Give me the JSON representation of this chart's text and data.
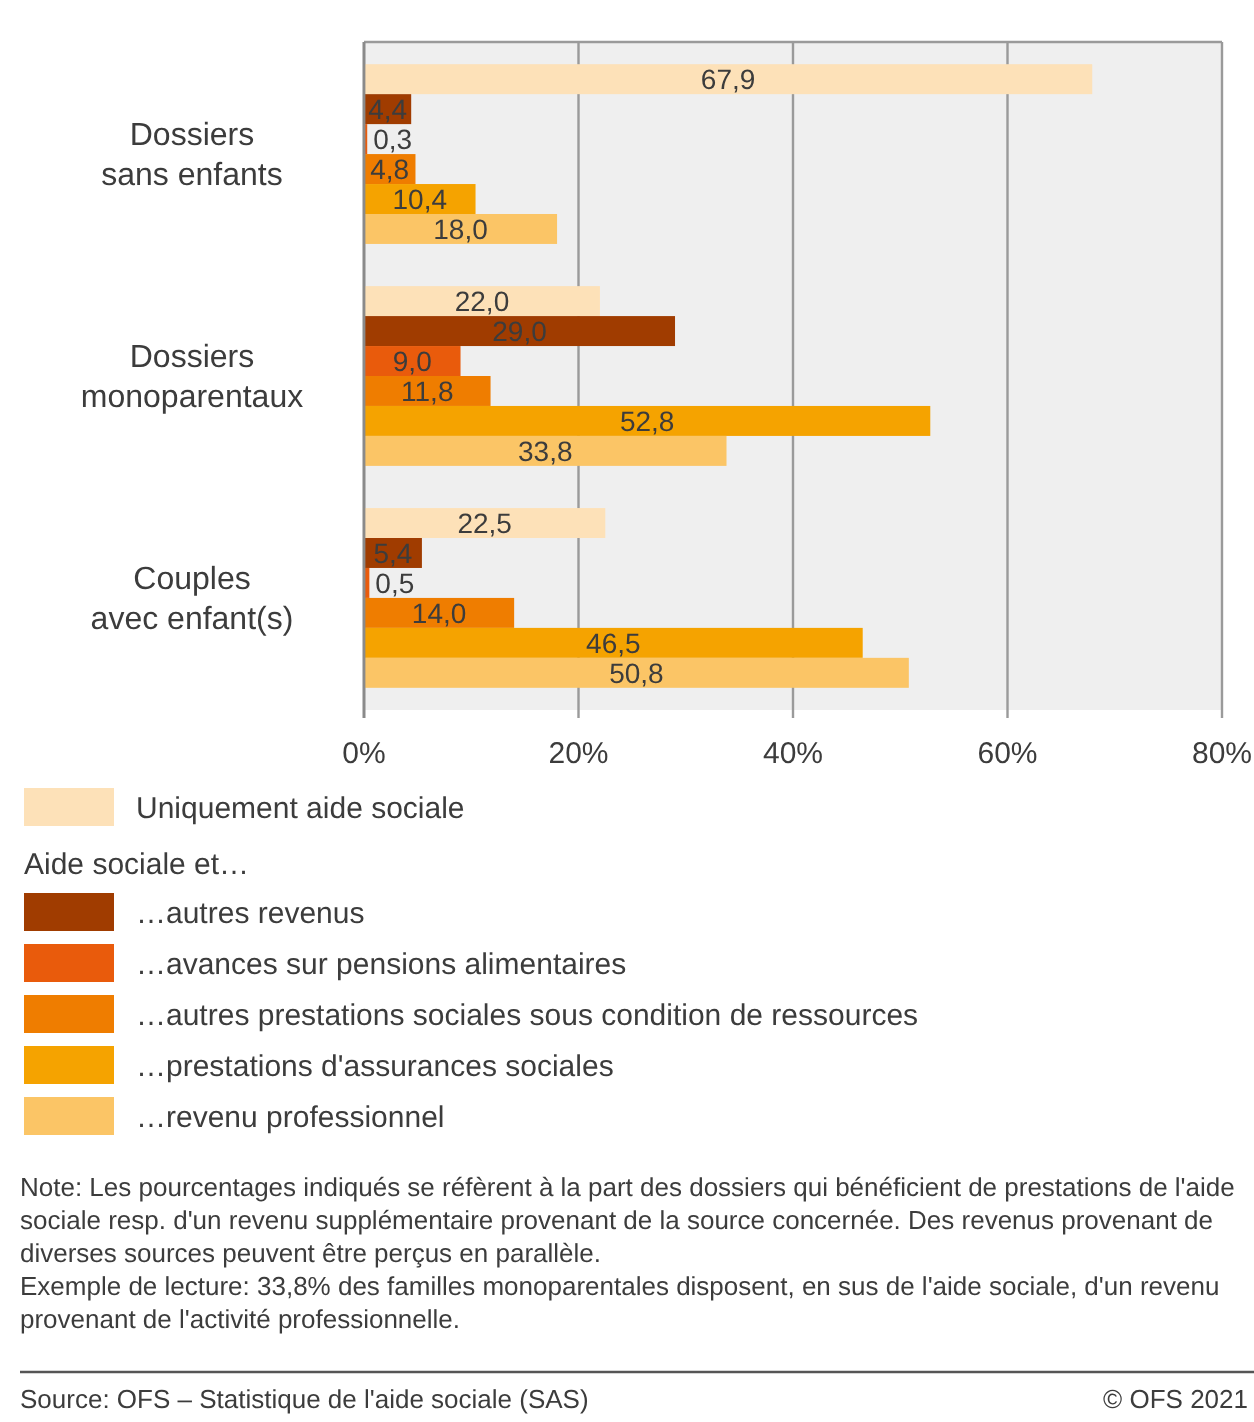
{
  "chart_data": {
    "type": "bar",
    "orientation": "horizontal",
    "categories": [
      "Dossiers sans enfants",
      "Dossiers monoparentaux",
      "Couples avec enfant(s)"
    ],
    "series": [
      {
        "name": "Uniquement aide sociale",
        "color": "#fde1b8",
        "values": [
          67.9,
          22.0,
          22.5
        ],
        "value_labels": [
          "67,9",
          "22,0",
          "22,5"
        ]
      },
      {
        "name": "…autres revenus",
        "color": "#a03c00",
        "values": [
          4.4,
          29.0,
          5.4
        ],
        "value_labels": [
          "4,4",
          "29,0",
          "5,4"
        ]
      },
      {
        "name": "…avances sur pensions alimentaires",
        "color": "#e95b0c",
        "values": [
          0.3,
          9.0,
          0.5
        ],
        "value_labels": [
          "0,3",
          "9,0",
          "0,5"
        ]
      },
      {
        "name": "…autres prestations sociales sous condition de ressources",
        "color": "#ef7d00",
        "values": [
          4.8,
          11.8,
          14.0
        ],
        "value_labels": [
          "4,8",
          "11,8",
          "14,0"
        ]
      },
      {
        "name": "…prestations d'assurances sociales",
        "color": "#f5a300",
        "values": [
          10.4,
          52.8,
          46.5
        ],
        "value_labels": [
          "10,4",
          "52,8",
          "46,5"
        ]
      },
      {
        "name": "…revenu professionnel",
        "color": "#fbc566",
        "values": [
          18.0,
          33.8,
          50.8
        ],
        "value_labels": [
          "18,0",
          "33,8",
          "50,8"
        ]
      }
    ],
    "xlim": [
      0,
      80
    ],
    "xticks": [
      {
        "value": 0,
        "label": "0%"
      },
      {
        "value": 20,
        "label": "20%"
      },
      {
        "value": 40,
        "label": "40%"
      },
      {
        "value": 60,
        "label": "60%"
      },
      {
        "value": 80,
        "label": "80%"
      }
    ],
    "grid": "x",
    "legend": "bottom",
    "legend_title": "Aide sociale et…",
    "annotations": [
      "Note: Les pourcentages indiqués se réfèrent à la part des dossiers qui bénéficient de prestations de l'aide sociale resp. d'un revenu supplémentaire provenant de la source concernée. Des revenus provenant de diverses sources peuvent être perçus en parallèle.",
      "Exemple de lecture: 33,8% des familles monoparentales disposent, en sus de l'aide sociale, d'un revenu provenant de l'activité professionnelle.",
      "Source: OFS – Statistique de l'aide sociale (SAS)",
      "© OFS 2021"
    ]
  }
}
